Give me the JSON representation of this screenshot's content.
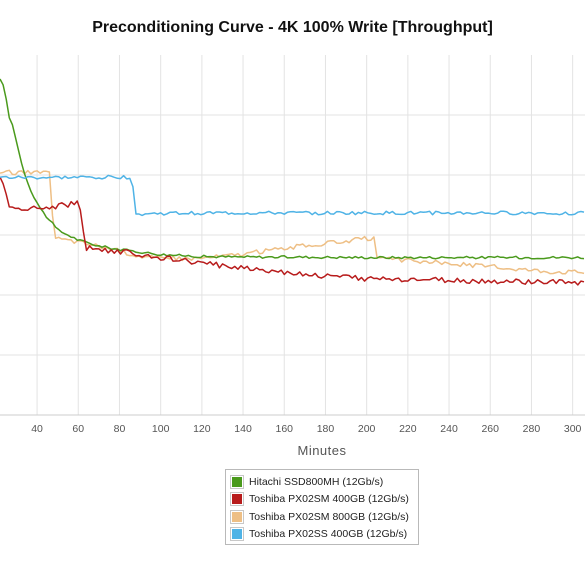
{
  "chart_data": {
    "type": "line",
    "title": "Preconditioning Curve - 4K 100% Write [Throughput]",
    "xlabel": "Minutes",
    "ylabel": "",
    "xlim": [
      22,
      306
    ],
    "ylim": [
      0,
      72
    ],
    "x_ticks": [
      40,
      60,
      80,
      100,
      120,
      140,
      160,
      180,
      200,
      220,
      240,
      260,
      280,
      300
    ],
    "y_gridlines": [
      12,
      24,
      36,
      48,
      60
    ],
    "grid": true,
    "legend_position": "bottom-center",
    "series": [
      {
        "name": "Hitachi SSD800MH (12Gb/s)",
        "color": "#4a9a1c",
        "x": [
          22,
          24,
          26,
          28,
          30,
          32,
          35,
          38,
          42,
          46,
          50,
          55,
          60,
          65,
          70,
          80,
          90,
          100,
          120,
          140,
          160,
          200,
          250,
          306
        ],
        "y": [
          67,
          66,
          60,
          58,
          55,
          51,
          47,
          44,
          41,
          39,
          37,
          36,
          35,
          34.4,
          33.8,
          33.1,
          32.6,
          32.1,
          31.7,
          31.6,
          31.6,
          31.5,
          31.5,
          31.5
        ]
      },
      {
        "name": "Toshiba PX02SM 400GB (12Gb/s)",
        "color": "#b81c1c",
        "x": [
          22,
          24,
          26,
          28,
          35,
          40,
          45,
          50,
          55,
          60,
          62,
          63,
          70,
          80,
          90,
          100,
          120,
          140,
          160,
          180,
          200,
          220,
          240,
          260,
          280,
          306
        ],
        "y": [
          48,
          46,
          41.5,
          41.2,
          41.4,
          41.2,
          41.6,
          41.8,
          42.1,
          42.3,
          39,
          33.5,
          33.2,
          32.7,
          32.1,
          31.5,
          30.3,
          29.5,
          28.6,
          27.8,
          27.3,
          27.1,
          26.9,
          26.7,
          26.6,
          26.5
        ]
      },
      {
        "name": "Toshiba PX02SM 800GB (12Gb/s)",
        "color": "#eebf85",
        "x": [
          22,
          40,
          46,
          47,
          48,
          50,
          60,
          70,
          80,
          90,
          100,
          120,
          140,
          160,
          180,
          200,
          204,
          205,
          220,
          240,
          260,
          280,
          290,
          306
        ],
        "y": [
          48.5,
          48.5,
          48.3,
          45,
          35.5,
          35.3,
          34.6,
          33.8,
          32.8,
          31.8,
          31.3,
          31.4,
          32.2,
          33.4,
          34.3,
          35.3,
          35.3,
          31.2,
          30.9,
          30.3,
          29.7,
          29.0,
          28.7,
          28.6
        ]
      },
      {
        "name": "Toshiba PX02SS 400GB (12Gb/s)",
        "color": "#4fb3e6",
        "x": [
          22,
          40,
          60,
          80,
          86,
          87,
          88,
          89,
          92,
          100,
          120,
          160,
          200,
          250,
          306
        ],
        "y": [
          47.5,
          47.5,
          47.5,
          47.6,
          47.5,
          44.5,
          40.5,
          40.1,
          40.2,
          40.3,
          40.4,
          40.4,
          40.4,
          40.4,
          40.4
        ]
      }
    ]
  }
}
